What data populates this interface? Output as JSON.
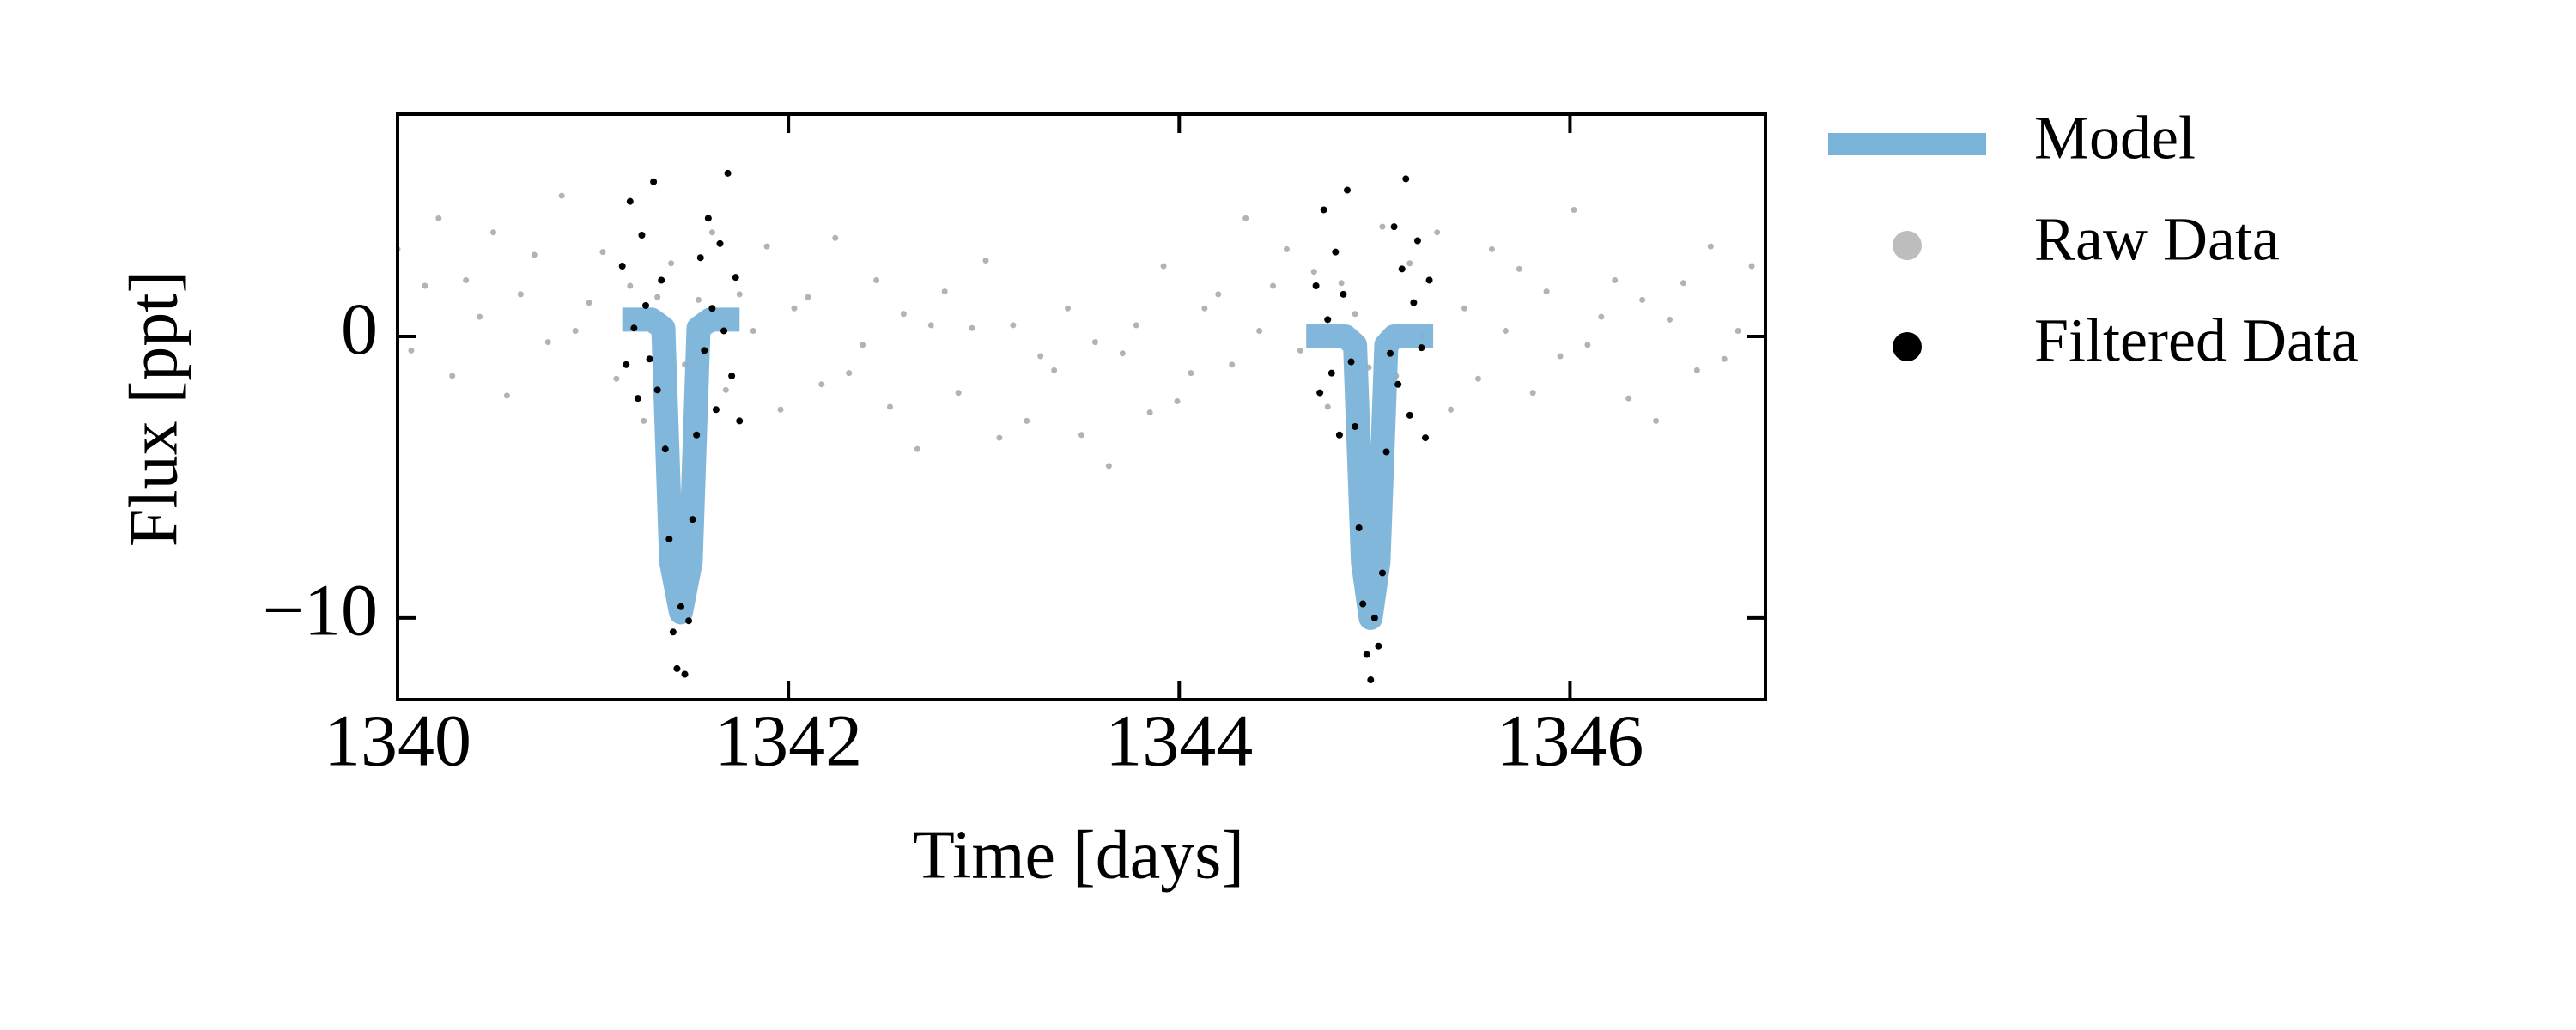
{
  "chart_data": {
    "type": "scatter",
    "xlabel": "Time [days]",
    "ylabel": "Flux [ppt]",
    "xlim": [
      1340,
      1347
    ],
    "ylim": [
      -12.9,
      7.9
    ],
    "xticks": [
      1340,
      1342,
      1344,
      1346
    ],
    "yticks": [
      {
        "value": -10,
        "label": "−10"
      },
      0
    ],
    "legend": "outside upper right",
    "series": [
      {
        "name": "Model",
        "type": "line",
        "color": "#7ab3d8",
        "x": [
          1341.15,
          1341.3,
          1341.36,
          1341.4,
          1341.45,
          1341.5,
          1341.54,
          1341.6,
          1341.75,
          null,
          1344.65,
          1344.85,
          1344.9,
          1344.94,
          1344.98,
          1345.02,
          1345.06,
          1345.1,
          1345.3
        ],
        "values": [
          0.6,
          0.6,
          0.3,
          -8,
          -9.8,
          -8,
          0.3,
          0.6,
          0.6,
          null,
          0,
          0,
          -0.3,
          -8,
          -10,
          -8,
          -0.3,
          0,
          0
        ]
      },
      {
        "name": "Raw Data",
        "type": "scatter",
        "color": "#999999",
        "x": [
          1340.0,
          1340.07,
          1340.14,
          1340.21,
          1340.28,
          1340.35,
          1340.42,
          1340.49,
          1340.56,
          1340.63,
          1340.7,
          1340.77,
          1340.84,
          1340.91,
          1340.98,
          1341.05,
          1341.12,
          1341.19,
          1341.26,
          1341.33,
          1341.4,
          1341.47,
          1341.54,
          1341.61,
          1341.68,
          1341.75,
          1341.82,
          1341.89,
          1341.96,
          1342.03,
          1342.1,
          1342.17,
          1342.24,
          1342.31,
          1342.38,
          1342.45,
          1342.52,
          1342.59,
          1342.66,
          1342.73,
          1342.8,
          1342.87,
          1342.94,
          1343.01,
          1343.08,
          1343.15,
          1343.22,
          1343.29,
          1343.36,
          1343.43,
          1343.5,
          1343.57,
          1343.64,
          1343.71,
          1343.78,
          1343.85,
          1343.92,
          1343.99,
          1344.06,
          1344.13,
          1344.2,
          1344.27,
          1344.34,
          1344.41,
          1344.48,
          1344.55,
          1344.62,
          1344.69,
          1344.76,
          1344.83,
          1344.9,
          1344.97,
          1345.04,
          1345.11,
          1345.18,
          1345.25,
          1345.32,
          1345.39,
          1345.46,
          1345.53,
          1345.6,
          1345.67,
          1345.74,
          1345.81,
          1345.88,
          1345.95,
          1346.02,
          1346.09,
          1346.16,
          1346.23,
          1346.3,
          1346.37,
          1346.44,
          1346.51,
          1346.58,
          1346.65,
          1346.72,
          1346.79,
          1346.86,
          1346.93
        ],
        "values": [
          3.1,
          -0.5,
          1.8,
          4.2,
          -1.4,
          2.0,
          0.7,
          3.7,
          -2.1,
          1.5,
          2.9,
          -0.2,
          5.0,
          0.2,
          1.2,
          3.0,
          -1.5,
          1.8,
          -3.0,
          1.4,
          2.6,
          -1.0,
          1.3,
          3.7,
          -1.9,
          1.5,
          0.2,
          3.2,
          -2.6,
          1.0,
          1.4,
          -1.7,
          3.5,
          -1.3,
          -0.3,
          2.0,
          -2.5,
          0.8,
          -4.0,
          0.4,
          1.6,
          -2.0,
          0.3,
          2.7,
          -3.6,
          0.4,
          -3.0,
          -0.7,
          -1.2,
          1.0,
          -3.5,
          -0.2,
          -4.6,
          -0.6,
          0.4,
          -2.7,
          2.5,
          -2.3,
          -1.3,
          1.0,
          1.5,
          -1.0,
          4.2,
          0.2,
          1.8,
          3.1,
          -0.5,
          2.3,
          -2.5,
          1.9,
          0.8,
          -1.1,
          3.9,
          -1.4,
          2.6,
          0.0,
          3.7,
          -2.6,
          1.0,
          -1.5,
          3.1,
          0.2,
          2.4,
          -2.0,
          1.6,
          -0.7,
          4.5,
          -0.3,
          0.7,
          2.0,
          -2.2,
          1.3,
          -3.0,
          0.6,
          1.9,
          -1.2,
          3.2,
          -0.8,
          0.2,
          2.5
        ]
      },
      {
        "name": "Filtered Data",
        "type": "scatter",
        "color": "#000000",
        "x": [
          1341.15,
          1341.17,
          1341.19,
          1341.21,
          1341.23,
          1341.25,
          1341.27,
          1341.29,
          1341.31,
          1341.33,
          1341.35,
          1341.37,
          1341.39,
          1341.41,
          1341.43,
          1341.45,
          1341.47,
          1341.49,
          1341.51,
          1341.53,
          1341.55,
          1341.57,
          1341.59,
          1341.61,
          1341.63,
          1341.65,
          1341.67,
          1341.69,
          1341.71,
          1341.73,
          1341.75,
          1344.7,
          1344.72,
          1344.74,
          1344.76,
          1344.78,
          1344.8,
          1344.82,
          1344.84,
          1344.86,
          1344.88,
          1344.9,
          1344.92,
          1344.94,
          1344.96,
          1344.98,
          1345.0,
          1345.02,
          1345.04,
          1345.06,
          1345.08,
          1345.1,
          1345.12,
          1345.14,
          1345.16,
          1345.18,
          1345.2,
          1345.22,
          1345.24,
          1345.26,
          1345.28
        ],
        "values": [
          2.5,
          -1.0,
          4.8,
          0.3,
          -2.2,
          3.6,
          1.1,
          -0.8,
          5.5,
          -1.9,
          2.0,
          -4.0,
          -7.2,
          -10.5,
          -11.8,
          -9.6,
          -12.0,
          -10.1,
          -6.5,
          -3.5,
          2.8,
          -0.5,
          4.2,
          1.0,
          -2.6,
          3.3,
          0.2,
          5.8,
          -1.4,
          2.1,
          -3.0,
          1.8,
          -2.0,
          4.5,
          0.6,
          -1.3,
          3.0,
          -3.5,
          1.5,
          5.2,
          -0.9,
          -3.2,
          -6.8,
          -9.5,
          -11.3,
          -12.2,
          -10.0,
          -11.0,
          -8.4,
          -4.1,
          -0.6,
          3.9,
          -1.7,
          2.4,
          5.6,
          -2.8,
          1.2,
          3.4,
          -0.4,
          -3.6,
          2.0
        ]
      }
    ]
  }
}
